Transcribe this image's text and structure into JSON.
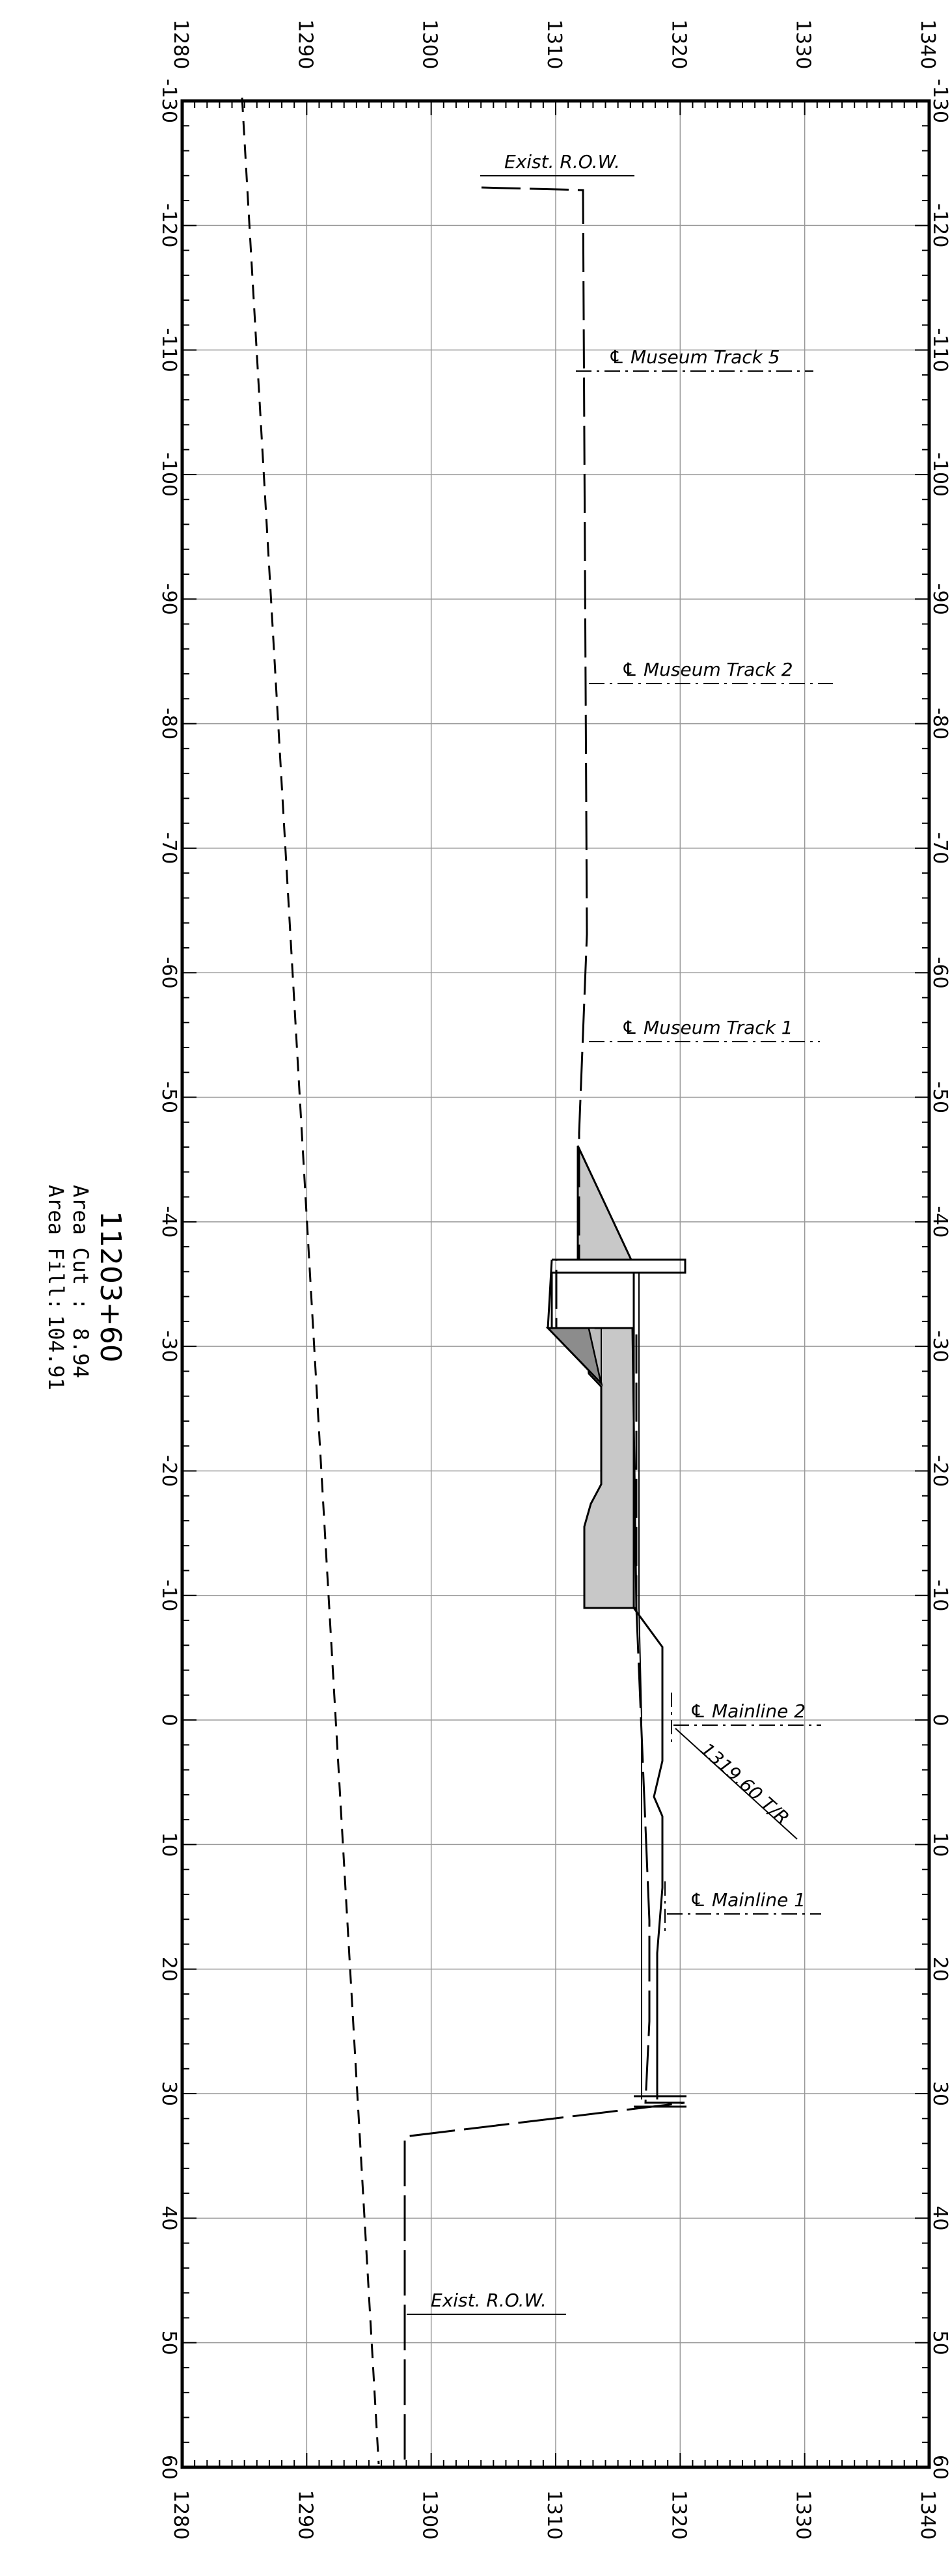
{
  "section": {
    "station": "11203+60",
    "area_cut_label": "Area Cut :",
    "area_cut_value": "8.94",
    "area_fill_label": "Area Fill:",
    "area_fill_value": "104.91"
  },
  "axes": {
    "offsets": [
      "-130",
      "-120",
      "-110",
      "-100",
      "-90",
      "-80",
      "-70",
      "-60",
      "-50",
      "-40",
      "-30",
      "-20",
      "-10",
      "0",
      "10",
      "20",
      "30",
      "40",
      "50",
      "60"
    ],
    "elevations": [
      "1280",
      "1290",
      "1300",
      "1310",
      "1320",
      "1330",
      "1340"
    ]
  },
  "callouts": {
    "row_top": "Exist. R.O.W.",
    "museum_track_5": "℄ Museum Track 5",
    "museum_track_2": "℄ Museum Track 2",
    "museum_track_1": "℄ Museum Track 1",
    "mainline_2": "℄ Mainline 2",
    "top_of_rail": "1319.60 T/R",
    "mainline_1": "℄ Mainline 1",
    "row_bottom": "Exist. R.O.W."
  },
  "colors": {
    "fill_light": "#c8c8c8",
    "fill_dark": "#8c8c8c",
    "grid": "#999999"
  }
}
